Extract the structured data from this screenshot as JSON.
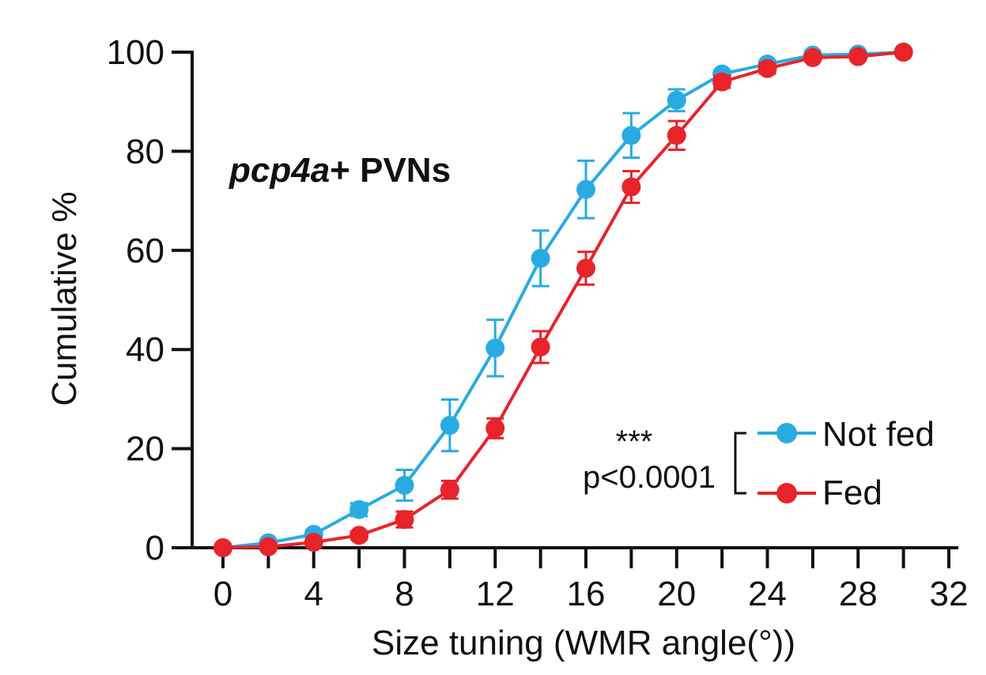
{
  "chart_data": {
    "type": "line",
    "title": "",
    "xlabel": "Size tuning (WMR angle(°))",
    "ylabel": "Cumulative %",
    "xlim": [
      0,
      32
    ],
    "ylim": [
      0,
      100
    ],
    "x_ticks": [
      0,
      2,
      4,
      6,
      8,
      10,
      12,
      14,
      16,
      18,
      20,
      22,
      24,
      26,
      28,
      30,
      32
    ],
    "x_tick_labels": [
      "0",
      "",
      "4",
      "",
      "8",
      "",
      "12",
      "",
      "16",
      "",
      "20",
      "",
      "24",
      "",
      "28",
      "",
      "32"
    ],
    "y_ticks": [
      0,
      20,
      40,
      60,
      80,
      100
    ],
    "y_tick_labels": [
      "0",
      "20",
      "40",
      "60",
      "80",
      "100"
    ],
    "grid": false,
    "legend_position": "bottom-right",
    "annotation": {
      "title_italic": "pcp4a",
      "title_rest": "+ PVNs",
      "significance": "***",
      "p_value": "p<0.0001"
    },
    "series": [
      {
        "name": "Not fed",
        "color": "#29abe2",
        "x": [
          0,
          2,
          4,
          6,
          8,
          10,
          12,
          14,
          16,
          18,
          20,
          22,
          24,
          26,
          28,
          30
        ],
        "y": [
          0,
          1,
          2.7,
          7.7,
          12.6,
          24.7,
          40.3,
          58.4,
          72.3,
          83.2,
          90.3,
          95.6,
          97.6,
          99.4,
          99.6,
          100
        ],
        "err": [
          0.3,
          0.6,
          0.8,
          1.3,
          3.1,
          5.2,
          5.7,
          5.6,
          5.8,
          4.5,
          2.2,
          0.8,
          0.6,
          0.3,
          0.3,
          0
        ]
      },
      {
        "name": "Fed",
        "color": "#e8232a",
        "x": [
          0,
          2,
          4,
          6,
          8,
          10,
          12,
          14,
          16,
          18,
          20,
          22,
          24,
          26,
          28,
          30
        ],
        "y": [
          0,
          0.2,
          1.1,
          2.5,
          5.7,
          11.7,
          24.1,
          40.5,
          56.4,
          72.8,
          83.2,
          94,
          96.7,
          98.9,
          99.1,
          100
        ],
        "err": [
          0.1,
          0.2,
          0.5,
          0.8,
          1.6,
          1.8,
          2,
          3.2,
          3.3,
          3.2,
          2.9,
          1.2,
          1,
          0.5,
          0.4,
          0
        ]
      }
    ]
  }
}
